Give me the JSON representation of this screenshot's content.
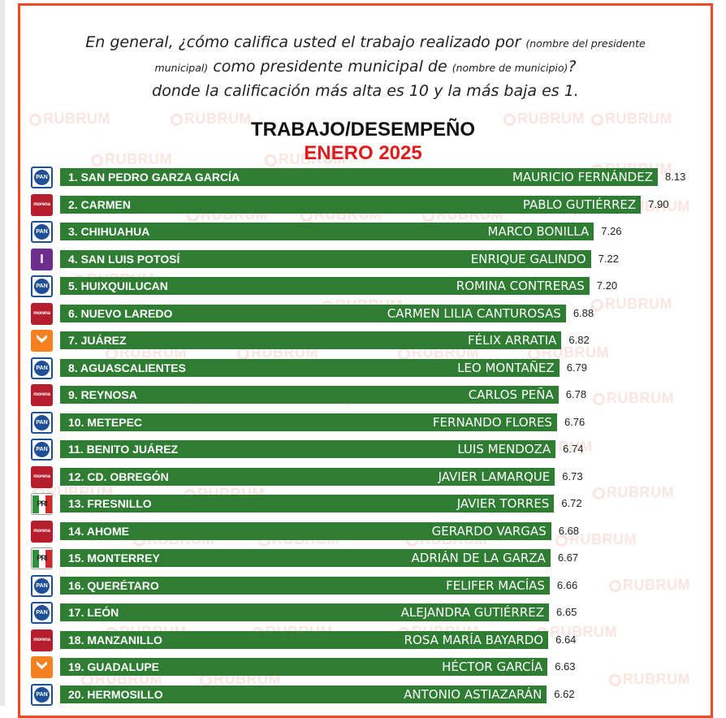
{
  "question": {
    "part1": "En general, ¿cómo califica usted el trabajo realizado por",
    "note1": "(nombre del presidente municipal)",
    "part2": "como presidente municipal de",
    "note2": "(nombre de municipio)",
    "part3": "?",
    "part4": "donde la calificación más alta es 10 y la más baja es 1."
  },
  "watermark": "RUBRUM",
  "colors": {
    "frame": "#f04a24",
    "bar": "#2e7d32",
    "subtitle": "#e01b1b"
  },
  "chart_data": {
    "type": "bar",
    "orientation": "horizontal",
    "title": "TRABAJO/DESEMPEÑO",
    "subtitle": "ENERO 2025",
    "xlim": [
      0,
      8.13
    ],
    "rows": [
      {
        "rank_city": "1. SAN PEDRO GARZA GARCÍA",
        "mayor": "MAURICIO FERNÁNDEZ",
        "value": 8.13,
        "value_label": "8.13",
        "party": "PAN"
      },
      {
        "rank_city": "2. CARMEN",
        "mayor": "PABLO GUTIÉRREZ",
        "value": 7.9,
        "value_label": "7.90",
        "party": "morena"
      },
      {
        "rank_city": "3. CHIHUAHUA",
        "mayor": "MARCO BONILLA",
        "value": 7.26,
        "value_label": "7.26",
        "party": "PAN"
      },
      {
        "rank_city": "4. SAN LUIS POTOSÍ",
        "mayor": "ENRIQUE GALINDO",
        "value": 7.22,
        "value_label": "7.22",
        "party": "I"
      },
      {
        "rank_city": "5. HUIXQUILUCAN",
        "mayor": "ROMINA CONTRERAS",
        "value": 7.2,
        "value_label": "7.20",
        "party": "PAN"
      },
      {
        "rank_city": "6. NUEVO LAREDO",
        "mayor": "CARMEN LILIA CANTUROSAS",
        "value": 6.88,
        "value_label": "6.88",
        "party": "morena"
      },
      {
        "rank_city": "7. JUÁREZ",
        "mayor": "FÉLIX ARRATIA",
        "value": 6.82,
        "value_label": "6.82",
        "party": "MC"
      },
      {
        "rank_city": "8. AGUASCALIENTES",
        "mayor": "LEO MONTAÑEZ",
        "value": 6.79,
        "value_label": "6.79",
        "party": "PAN"
      },
      {
        "rank_city": "9. REYNOSA",
        "mayor": "CARLOS PEÑA",
        "value": 6.78,
        "value_label": "6.78",
        "party": "morena"
      },
      {
        "rank_city": "10. METEPEC",
        "mayor": "FERNANDO FLORES",
        "value": 6.76,
        "value_label": "6.76",
        "party": "PAN"
      },
      {
        "rank_city": "11. BENITO JUÁREZ",
        "mayor": "LUIS MENDOZA",
        "value": 6.74,
        "value_label": "6.74",
        "party": "PAN"
      },
      {
        "rank_city": "12. CD. OBREGÓN",
        "mayor": "JAVIER LAMARQUE",
        "value": 6.73,
        "value_label": "6.73",
        "party": "morena"
      },
      {
        "rank_city": "13. FRESNILLO",
        "mayor": "JAVIER TORRES",
        "value": 6.72,
        "value_label": "6.72",
        "party": "PRI-PRD"
      },
      {
        "rank_city": "14. AHOME",
        "mayor": "GERARDO VARGAS",
        "value": 6.68,
        "value_label": "6.68",
        "party": "morena"
      },
      {
        "rank_city": "15. MONTERREY",
        "mayor": "ADRIÁN DE LA GARZA",
        "value": 6.67,
        "value_label": "6.67",
        "party": "PRI-PRD"
      },
      {
        "rank_city": "16. QUERÉTARO",
        "mayor": "FELIFER MACÍAS",
        "value": 6.66,
        "value_label": "6.66",
        "party": "PAN"
      },
      {
        "rank_city": "17. LEÓN",
        "mayor": "ALEJANDRA GUTIÉRREZ",
        "value": 6.65,
        "value_label": "6.65",
        "party": "PAN"
      },
      {
        "rank_city": "18. MANZANILLO",
        "mayor": "ROSA MARÍA BAYARDO",
        "value": 6.64,
        "value_label": "6.64",
        "party": "morena"
      },
      {
        "rank_city": "19. GUADALUPE",
        "mayor": "HÉCTOR GARCÍA",
        "value": 6.63,
        "value_label": "6.63",
        "party": "MC"
      },
      {
        "rank_city": "20. HERMOSILLO",
        "mayor": "ANTONIO ASTIAZARÁN",
        "value": 6.62,
        "value_label": "6.62",
        "party": "PAN"
      }
    ]
  }
}
